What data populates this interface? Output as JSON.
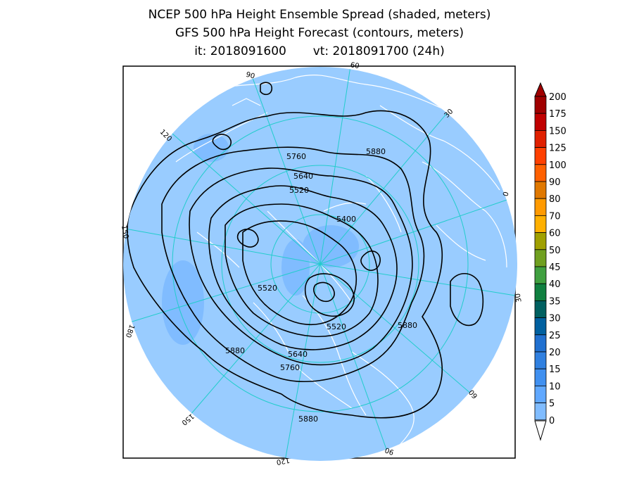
{
  "title": {
    "line1": "NCEP 500 hPa Height Ensemble Spread (shaded, meters)",
    "line2": "GFS 500 hPa Height Forecast (contours, meters)",
    "line3": "it: 2018091600       vt: 2018091700 (24h)"
  },
  "map": {
    "projection": "north-polar-stereographic",
    "ocean_shade_color": "#99ccff",
    "coastline_color": "#ffffff",
    "grid_color": "#22cccc",
    "contour_color": "#000000",
    "meridian_labels": [
      "60",
      "30",
      "0",
      "30",
      "60",
      "90",
      "120",
      "150",
      "180",
      "150",
      "120",
      "90"
    ],
    "contour_labels": [
      "5760",
      "5880",
      "5640",
      "5520",
      "5400",
      "5520",
      "5520",
      "5880",
      "5640",
      "5760",
      "5880",
      "5880"
    ]
  },
  "colorbar": {
    "levels": [
      "200",
      "175",
      "150",
      "125",
      "100",
      "90",
      "80",
      "70",
      "60",
      "50",
      "45",
      "40",
      "35",
      "30",
      "25",
      "20",
      "15",
      "10",
      "5",
      "0"
    ],
    "colors": [
      "#a00000",
      "#c00000",
      "#e02000",
      "#ff4000",
      "#ff6000",
      "#e07800",
      "#ff9a00",
      "#ffb000",
      "#a0a000",
      "#70a020",
      "#40a040",
      "#108040",
      "#006060",
      "#0060a0",
      "#2070d0",
      "#3080e0",
      "#4090f0",
      "#60a8ff",
      "#80bcff",
      "#99ccff"
    ]
  }
}
